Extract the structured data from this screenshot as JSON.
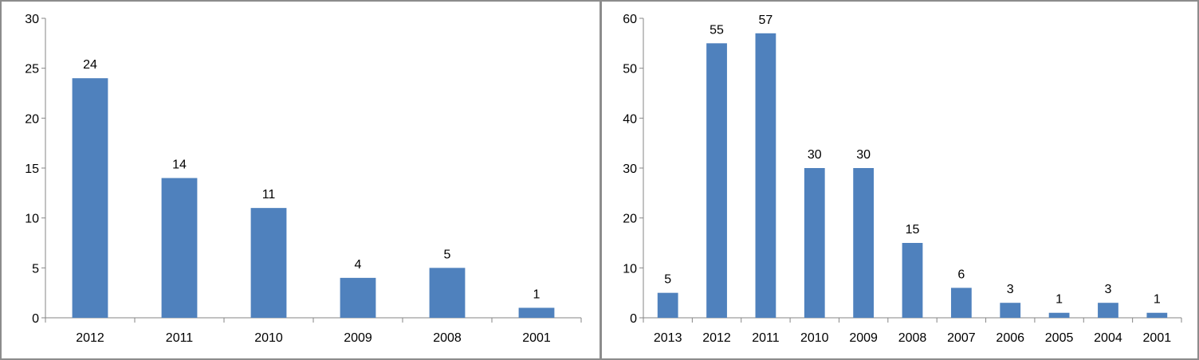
{
  "chart_data": [
    {
      "type": "bar",
      "categories": [
        "2012",
        "2011",
        "2010",
        "2009",
        "2008",
        "2001"
      ],
      "values": [
        24,
        14,
        11,
        4,
        5,
        1
      ],
      "ylim": [
        0,
        30
      ],
      "yticks": [
        0,
        5,
        10,
        15,
        20,
        25,
        30
      ],
      "grid": false,
      "data_labels": true,
      "bar_color": "#4F81BD"
    },
    {
      "type": "bar",
      "categories": [
        "2013",
        "2012",
        "2011",
        "2010",
        "2009",
        "2008",
        "2007",
        "2006",
        "2005",
        "2004",
        "2001"
      ],
      "values": [
        5,
        55,
        57,
        30,
        30,
        15,
        6,
        3,
        1,
        3,
        1
      ],
      "ylim": [
        0,
        60
      ],
      "yticks": [
        0,
        10,
        20,
        30,
        40,
        50,
        60
      ],
      "grid": false,
      "data_labels": true,
      "bar_color": "#4F81BD"
    }
  ]
}
